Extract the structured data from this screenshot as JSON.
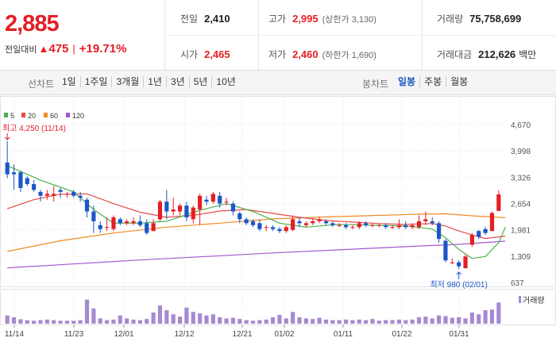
{
  "quote": {
    "current_price": "2,885",
    "change_label": "전일대비",
    "change_arrow": "▲",
    "change_value": "475",
    "change_percent": "+19.71%"
  },
  "stats": {
    "prev_close": {
      "label": "전일",
      "value": "2,410"
    },
    "high": {
      "label": "고가",
      "value": "2,995",
      "note": "(상한가 3,130)"
    },
    "volume": {
      "label": "거래량",
      "value": "75,758,699"
    },
    "open": {
      "label": "시가",
      "value": "2,465"
    },
    "low": {
      "label": "저가",
      "value": "2,460",
      "note": "(하한가 1,690)"
    },
    "amount": {
      "label": "거래대금",
      "value": "212,626",
      "unit": "백만"
    }
  },
  "toolbar": {
    "line_label": "선차트",
    "periods": [
      "1일",
      "1주일",
      "3개월",
      "1년",
      "3년",
      "5년",
      "10년"
    ],
    "candle_label": "봉차트",
    "candle_periods": [
      "일봉",
      "주봉",
      "월봉"
    ],
    "active_candle": "일봉"
  },
  "colors": {
    "up": "#e41e25",
    "down": "#1c57c9",
    "ma5": "#4ab24a",
    "ma20": "#e84a4a",
    "ma60": "#f08a24",
    "ma120": "#a05ad0",
    "volume": "#a58ad1"
  },
  "chart_data": {
    "type": "candlestick",
    "legend": [
      {
        "name": "5",
        "color": "#4ab24a"
      },
      {
        "name": "20",
        "color": "#e84a4a"
      },
      {
        "name": "60",
        "color": "#f08a24"
      },
      {
        "name": "120",
        "color": "#a05ad0"
      }
    ],
    "y_ticks": [
      "4,670",
      "3,998",
      "3,326",
      "2,654",
      "1,981",
      "1,309",
      "637"
    ],
    "ylim": [
      637,
      4670
    ],
    "x_ticks": [
      "11/14",
      "11/23",
      "12/01",
      "12/12",
      "12/21",
      "01/02",
      "01/11",
      "01/22",
      "01/31"
    ],
    "high_annotation": "최고 4,250 (11/14)",
    "low_annotation": "최저 980 (02/01)",
    "volume_label": "거래량",
    "candles": [
      {
        "o": 3700,
        "h": 4250,
        "l": 3300,
        "c": 3400
      },
      {
        "o": 3450,
        "h": 3650,
        "l": 3000,
        "c": 3400
      },
      {
        "o": 3450,
        "h": 3500,
        "l": 2950,
        "c": 3050
      },
      {
        "o": 3300,
        "h": 3350,
        "l": 3100,
        "c": 3150
      },
      {
        "o": 3150,
        "h": 3250,
        "l": 2950,
        "c": 3000
      },
      {
        "o": 2950,
        "h": 3000,
        "l": 2700,
        "c": 2850
      },
      {
        "o": 2850,
        "h": 3000,
        "l": 2750,
        "c": 2900
      },
      {
        "o": 2850,
        "h": 3100,
        "l": 2700,
        "c": 2900
      },
      {
        "o": 3000,
        "h": 3050,
        "l": 2800,
        "c": 2950
      },
      {
        "o": 2900,
        "h": 2950,
        "l": 2800,
        "c": 2900
      },
      {
        "o": 2950,
        "h": 3000,
        "l": 2800,
        "c": 2850
      },
      {
        "o": 2850,
        "h": 2950,
        "l": 2700,
        "c": 2800
      },
      {
        "o": 2750,
        "h": 2800,
        "l": 2300,
        "c": 2450
      },
      {
        "o": 2450,
        "h": 2600,
        "l": 1900,
        "c": 2200
      },
      {
        "o": 2100,
        "h": 2200,
        "l": 1900,
        "c": 2000
      },
      {
        "o": 2050,
        "h": 2300,
        "l": 1950,
        "c": 2050
      },
      {
        "o": 2000,
        "h": 2350,
        "l": 1950,
        "c": 2300
      },
      {
        "o": 2250,
        "h": 2300,
        "l": 2100,
        "c": 2150
      },
      {
        "o": 2150,
        "h": 2250,
        "l": 2100,
        "c": 2200
      },
      {
        "o": 2150,
        "h": 2300,
        "l": 2100,
        "c": 2200
      },
      {
        "o": 2200,
        "h": 2350,
        "l": 2050,
        "c": 2100
      },
      {
        "o": 2150,
        "h": 2250,
        "l": 1850,
        "c": 1900
      },
      {
        "o": 1950,
        "h": 2250,
        "l": 1950,
        "c": 2150
      },
      {
        "o": 2250,
        "h": 2750,
        "l": 2200,
        "c": 2700
      },
      {
        "o": 2700,
        "h": 3000,
        "l": 2250,
        "c": 2450
      },
      {
        "o": 2450,
        "h": 2800,
        "l": 2350,
        "c": 2500
      },
      {
        "o": 2450,
        "h": 2650,
        "l": 2350,
        "c": 2600
      },
      {
        "o": 2600,
        "h": 2700,
        "l": 2200,
        "c": 2300
      },
      {
        "o": 2250,
        "h": 2600,
        "l": 2150,
        "c": 2550
      },
      {
        "o": 2500,
        "h": 2900,
        "l": 2100,
        "c": 2850
      },
      {
        "o": 2750,
        "h": 2850,
        "l": 2600,
        "c": 2700
      },
      {
        "o": 2700,
        "h": 2950,
        "l": 2650,
        "c": 2900
      },
      {
        "o": 2850,
        "h": 2950,
        "l": 2550,
        "c": 2650
      },
      {
        "o": 2700,
        "h": 2800,
        "l": 2600,
        "c": 2700
      },
      {
        "o": 2650,
        "h": 2700,
        "l": 2350,
        "c": 2450
      },
      {
        "o": 2400,
        "h": 2450,
        "l": 2150,
        "c": 2250
      },
      {
        "o": 2250,
        "h": 2300,
        "l": 2100,
        "c": 2150
      },
      {
        "o": 2200,
        "h": 2250,
        "l": 2050,
        "c": 2100
      },
      {
        "o": 2150,
        "h": 2250,
        "l": 1950,
        "c": 2000
      },
      {
        "o": 2050,
        "h": 2100,
        "l": 1950,
        "c": 2050
      },
      {
        "o": 2050,
        "h": 2100,
        "l": 1950,
        "c": 2000
      },
      {
        "o": 2000,
        "h": 2050,
        "l": 1900,
        "c": 1950
      },
      {
        "o": 1950,
        "h": 2100,
        "l": 1900,
        "c": 2050
      },
      {
        "o": 1980,
        "h": 2350,
        "l": 1950,
        "c": 2250
      },
      {
        "o": 2200,
        "h": 2300,
        "l": 2050,
        "c": 2150
      },
      {
        "o": 2100,
        "h": 2200,
        "l": 2050,
        "c": 2150
      },
      {
        "o": 2150,
        "h": 2250,
        "l": 2100,
        "c": 2200
      },
      {
        "o": 2200,
        "h": 2300,
        "l": 2150,
        "c": 2250
      },
      {
        "o": 2200,
        "h": 2250,
        "l": 2100,
        "c": 2150
      },
      {
        "o": 2150,
        "h": 2200,
        "l": 2050,
        "c": 2100
      },
      {
        "o": 2100,
        "h": 2150,
        "l": 2050,
        "c": 2100
      },
      {
        "o": 2100,
        "h": 2150,
        "l": 2000,
        "c": 2050
      },
      {
        "o": 2050,
        "h": 2100,
        "l": 2000,
        "c": 2050
      },
      {
        "o": 2050,
        "h": 2200,
        "l": 2000,
        "c": 2150
      },
      {
        "o": 2150,
        "h": 2200,
        "l": 2050,
        "c": 2100
      },
      {
        "o": 2100,
        "h": 2150,
        "l": 2050,
        "c": 2100
      },
      {
        "o": 2100,
        "h": 2150,
        "l": 2050,
        "c": 2100
      },
      {
        "o": 2100,
        "h": 2150,
        "l": 2000,
        "c": 2050
      },
      {
        "o": 2050,
        "h": 2100,
        "l": 2000,
        "c": 2050
      },
      {
        "o": 2050,
        "h": 2250,
        "l": 2000,
        "c": 2100
      },
      {
        "o": 2100,
        "h": 2200,
        "l": 2000,
        "c": 2050
      },
      {
        "o": 2050,
        "h": 2150,
        "l": 2000,
        "c": 2100
      },
      {
        "o": 2050,
        "h": 2350,
        "l": 2000,
        "c": 2200
      },
      {
        "o": 2200,
        "h": 2450,
        "l": 2100,
        "c": 2250
      },
      {
        "o": 2200,
        "h": 2300,
        "l": 2100,
        "c": 2150
      },
      {
        "o": 2150,
        "h": 2200,
        "l": 1650,
        "c": 1750
      },
      {
        "o": 1700,
        "h": 1750,
        "l": 1150,
        "c": 1200
      },
      {
        "o": 1150,
        "h": 1250,
        "l": 1100,
        "c": 1150
      },
      {
        "o": 1150,
        "h": 1200,
        "l": 980,
        "c": 1050
      },
      {
        "o": 1000,
        "h": 1350,
        "l": 1000,
        "c": 1300
      },
      {
        "o": 1600,
        "h": 1900,
        "l": 1550,
        "c": 1850
      },
      {
        "o": 1950,
        "h": 1980,
        "l": 1750,
        "c": 1800
      },
      {
        "o": 2000,
        "h": 2050,
        "l": 1850,
        "c": 1900
      },
      {
        "o": 1950,
        "h": 2450,
        "l": 1950,
        "c": 2410
      },
      {
        "o": 2465,
        "h": 2995,
        "l": 2460,
        "c": 2885
      }
    ],
    "ma": {
      "ma5": [
        [
          0,
          3620
        ],
        [
          5,
          3250
        ],
        [
          10,
          2950
        ],
        [
          13,
          2500
        ],
        [
          16,
          2150
        ],
        [
          20,
          2150
        ],
        [
          24,
          2200
        ],
        [
          29,
          2480
        ],
        [
          33,
          2650
        ],
        [
          37,
          2450
        ],
        [
          41,
          2150
        ],
        [
          45,
          2050
        ],
        [
          50,
          2120
        ],
        [
          55,
          2100
        ],
        [
          60,
          2080
        ],
        [
          64,
          2000
        ],
        [
          66,
          1780
        ],
        [
          68,
          1480
        ],
        [
          70,
          1250
        ],
        [
          72,
          1300
        ],
        [
          74,
          1650
        ],
        [
          75,
          2050
        ]
      ],
      "ma20": [
        [
          0,
          2520
        ],
        [
          4,
          2750
        ],
        [
          8,
          2890
        ],
        [
          12,
          2900
        ],
        [
          16,
          2650
        ],
        [
          20,
          2430
        ],
        [
          24,
          2300
        ],
        [
          28,
          2350
        ],
        [
          32,
          2460
        ],
        [
          36,
          2500
        ],
        [
          40,
          2400
        ],
        [
          44,
          2300
        ],
        [
          48,
          2220
        ],
        [
          52,
          2180
        ],
        [
          56,
          2140
        ],
        [
          60,
          2120
        ],
        [
          64,
          2140
        ],
        [
          66,
          2080
        ],
        [
          68,
          1950
        ],
        [
          70,
          1850
        ],
        [
          72,
          1760
        ],
        [
          75,
          1820
        ]
      ],
      "ma60": [
        [
          0,
          1430
        ],
        [
          8,
          1700
        ],
        [
          16,
          1900
        ],
        [
          24,
          2050
        ],
        [
          32,
          2150
        ],
        [
          40,
          2260
        ],
        [
          48,
          2310
        ],
        [
          56,
          2350
        ],
        [
          62,
          2380
        ],
        [
          66,
          2390
        ],
        [
          70,
          2340
        ],
        [
          75,
          2290
        ]
      ],
      "ma120": [
        [
          0,
          1010
        ],
        [
          10,
          1110
        ],
        [
          20,
          1210
        ],
        [
          30,
          1300
        ],
        [
          40,
          1390
        ],
        [
          50,
          1470
        ],
        [
          60,
          1550
        ],
        [
          68,
          1610
        ],
        [
          75,
          1690
        ]
      ]
    },
    "volumes": [
      0.28,
      0.22,
      0.15,
      0.12,
      0.1,
      0.12,
      0.14,
      0.12,
      0.1,
      0.1,
      0.1,
      0.12,
      0.82,
      0.52,
      0.18,
      0.12,
      0.14,
      0.28,
      0.18,
      0.14,
      0.12,
      0.16,
      0.38,
      0.62,
      0.46,
      0.32,
      0.24,
      0.55,
      0.4,
      0.35,
      0.28,
      0.32,
      0.22,
      0.18,
      0.2,
      0.16,
      0.12,
      0.1,
      0.12,
      0.14,
      0.22,
      0.3,
      0.18,
      0.4,
      0.22,
      0.18,
      0.16,
      0.2,
      0.14,
      0.12,
      0.12,
      0.14,
      0.12,
      0.14,
      0.12,
      0.16,
      0.1,
      0.12,
      0.12,
      0.14,
      0.12,
      0.14,
      0.22,
      0.24,
      0.18,
      0.28,
      0.26,
      0.2,
      0.22,
      0.18,
      0.38,
      0.32,
      0.46,
      0.48,
      0.72
    ]
  }
}
